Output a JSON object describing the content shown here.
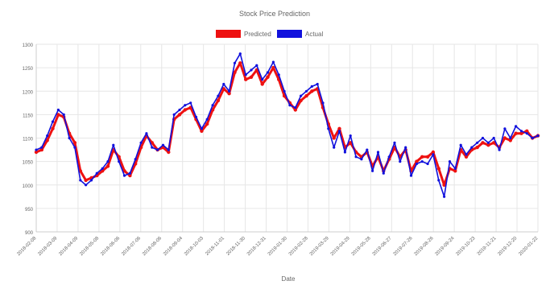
{
  "chart_data": {
    "type": "line",
    "title": "Stock Price Prediction",
    "xlabel": "Date",
    "ylabel": "",
    "ylim": [
      900,
      1300
    ],
    "yticks": [
      900,
      950,
      1000,
      1050,
      1100,
      1150,
      1200,
      1250,
      1300
    ],
    "grid": true,
    "legend_position": "top-center",
    "x_tick_labels": [
      "2018-02-08",
      "2018-03-09",
      "2018-04-09",
      "2018-05-08",
      "2018-06-06",
      "2018-07-06",
      "2018-08-06",
      "2018-09-04",
      "2018-10-03",
      "2018-11-01",
      "2018-11-30",
      "2018-12-31",
      "2019-01-30",
      "2019-02-28",
      "2019-03-29",
      "2019-04-29",
      "2019-05-28",
      "2019-06-27",
      "2019-07-26",
      "2019-08-26",
      "2019-09-24",
      "2019-10-23",
      "2019-11-21",
      "2019-12-20",
      "2020-01-22"
    ],
    "series": [
      {
        "name": "Predicted",
        "color": "#ee1111",
        "values": [
          1070,
          1075,
          1095,
          1120,
          1150,
          1145,
          1110,
          1090,
          1030,
          1010,
          1015,
          1020,
          1030,
          1040,
          1075,
          1060,
          1030,
          1020,
          1045,
          1080,
          1105,
          1090,
          1075,
          1080,
          1070,
          1140,
          1150,
          1160,
          1165,
          1140,
          1115,
          1130,
          1160,
          1180,
          1205,
          1195,
          1240,
          1260,
          1225,
          1230,
          1245,
          1215,
          1230,
          1250,
          1225,
          1190,
          1175,
          1160,
          1180,
          1190,
          1200,
          1205,
          1165,
          1130,
          1100,
          1120,
          1080,
          1090,
          1070,
          1060,
          1070,
          1040,
          1060,
          1030,
          1055,
          1080,
          1060,
          1075,
          1030,
          1050,
          1060,
          1060,
          1070,
          1035,
          1000,
          1035,
          1030,
          1075,
          1060,
          1075,
          1080,
          1090,
          1085,
          1090,
          1080,
          1100,
          1095,
          1110,
          1110,
          1115,
          1100,
          1105
        ]
      },
      {
        "name": "Actual",
        "color": "#1111dd",
        "values": [
          1075,
          1080,
          1105,
          1135,
          1160,
          1150,
          1100,
          1080,
          1010,
          1000,
          1010,
          1025,
          1035,
          1050,
          1085,
          1050,
          1020,
          1025,
          1055,
          1090,
          1110,
          1080,
          1075,
          1085,
          1075,
          1150,
          1160,
          1170,
          1175,
          1145,
          1120,
          1140,
          1170,
          1190,
          1215,
          1200,
          1260,
          1280,
          1235,
          1245,
          1255,
          1225,
          1240,
          1262,
          1235,
          1200,
          1170,
          1165,
          1190,
          1200,
          1210,
          1215,
          1175,
          1120,
          1080,
          1115,
          1070,
          1105,
          1060,
          1055,
          1075,
          1030,
          1070,
          1025,
          1060,
          1090,
          1050,
          1080,
          1020,
          1045,
          1050,
          1045,
          1065,
          1010,
          975,
          1050,
          1035,
          1085,
          1065,
          1080,
          1090,
          1100,
          1090,
          1100,
          1075,
          1120,
          1100,
          1125,
          1115,
          1110,
          1100,
          1105
        ]
      }
    ]
  }
}
